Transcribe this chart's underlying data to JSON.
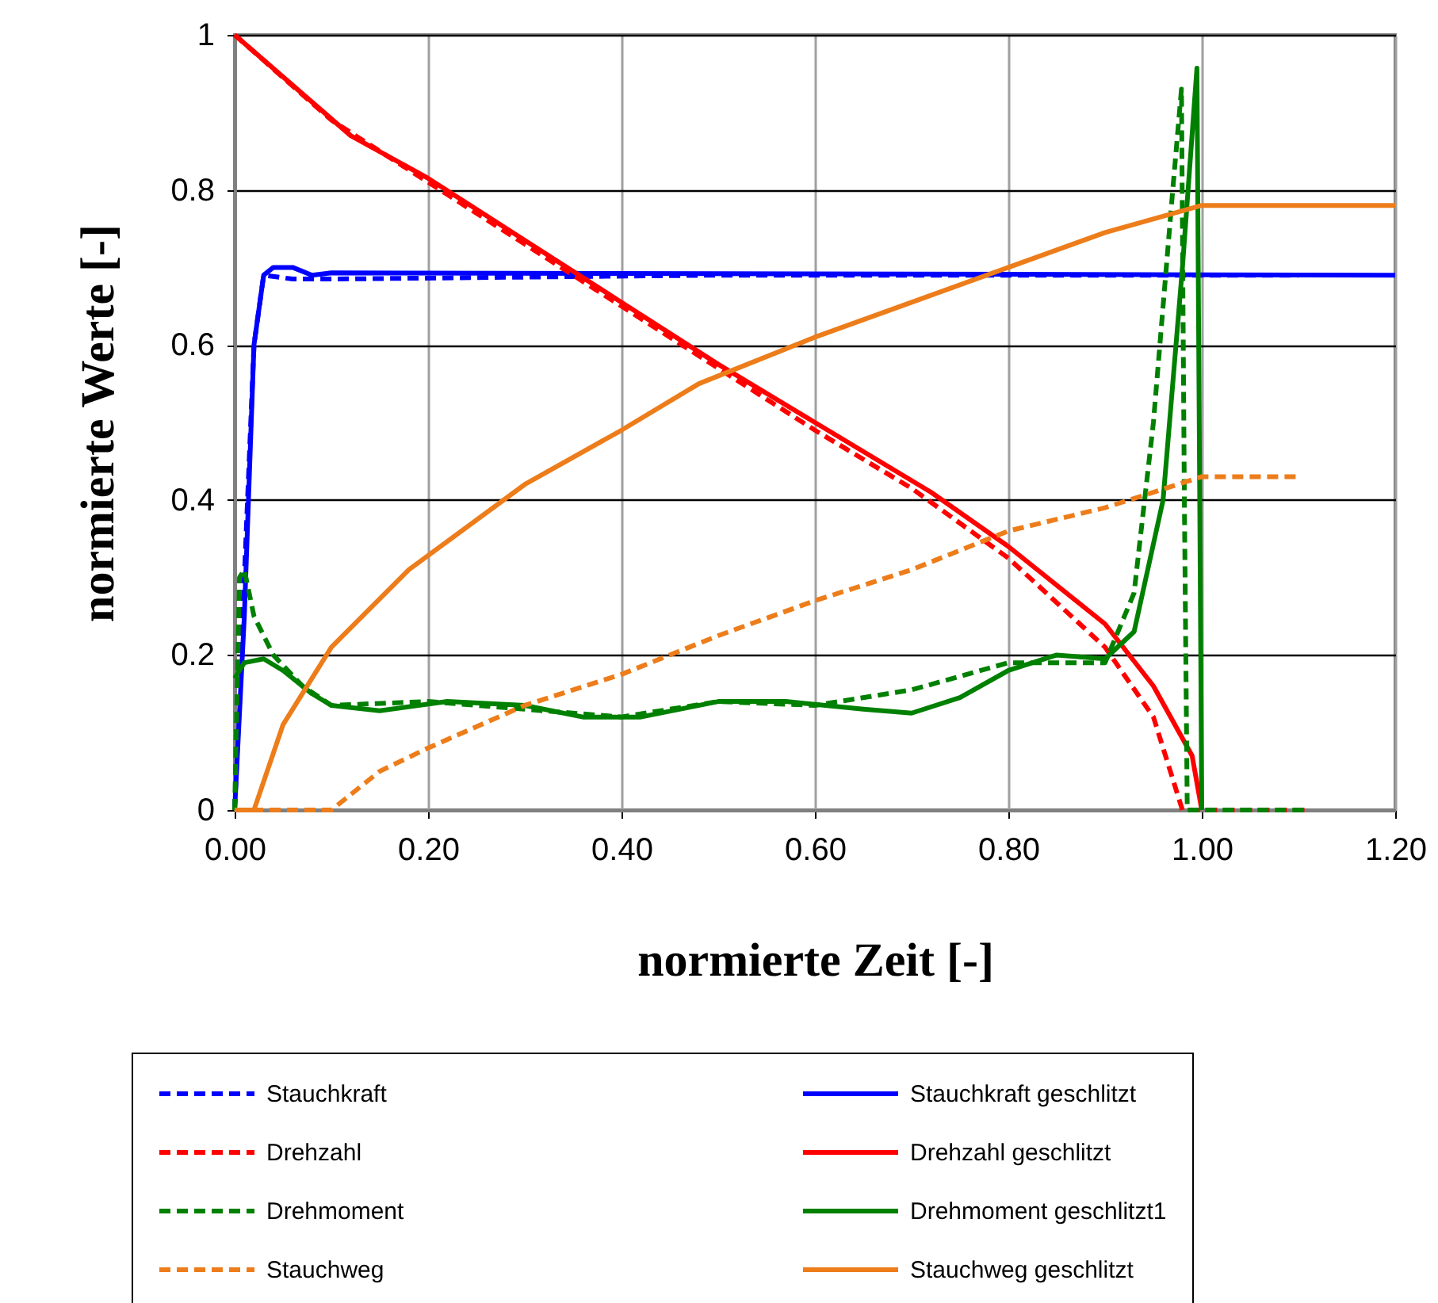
{
  "chart_data": {
    "type": "line",
    "xlabel": "normierte Zeit [-]",
    "ylabel": "normierte Werte [-]",
    "xlim": [
      0,
      1.2
    ],
    "xticks": [
      {
        "value": 0,
        "label": "0.00"
      },
      {
        "value": 0.2,
        "label": "0.20"
      },
      {
        "value": 0.4,
        "label": "0.40"
      },
      {
        "value": 0.6,
        "label": "0.60"
      },
      {
        "value": 0.8,
        "label": "0.80"
      },
      {
        "value": 1,
        "label": "1.00"
      },
      {
        "value": 1.2,
        "label": "1.20"
      }
    ],
    "ylim": [
      0,
      1
    ],
    "yticks": [
      0,
      0.2,
      0.4,
      0.6,
      0.8,
      1
    ],
    "grid": true,
    "legend": "bottom",
    "series": [
      {
        "name": "Stauchkraft",
        "color": "#0000ff",
        "line_style": "dashed",
        "x": [
          0,
          0.01,
          0.02,
          0.03,
          0.06,
          0.1,
          0.5,
          1.1
        ],
        "values": [
          0,
          0.3,
          0.6,
          0.69,
          0.685,
          0.685,
          0.69,
          0.69
        ]
      },
      {
        "name": "Stauchkraft geschlitzt",
        "color": "#0000ff",
        "line_style": "solid",
        "x": [
          0,
          0.01,
          0.02,
          0.03,
          0.04,
          0.06,
          0.08,
          0.1,
          0.5,
          1.2
        ],
        "values": [
          0,
          0.25,
          0.6,
          0.69,
          0.7,
          0.7,
          0.69,
          0.693,
          0.692,
          0.69
        ]
      },
      {
        "name": "Drehzahl",
        "color": "#ff0000",
        "line_style": "dashed",
        "x": [
          0,
          0.1,
          0.2,
          0.3,
          0.4,
          0.5,
          0.6,
          0.7,
          0.8,
          0.9,
          0.95,
          0.97,
          0.98,
          1.11
        ],
        "values": [
          1,
          0.89,
          0.81,
          0.73,
          0.65,
          0.57,
          0.49,
          0.415,
          0.325,
          0.21,
          0.12,
          0.04,
          0,
          0
        ]
      },
      {
        "name": "Drehzahl geschlitzt",
        "color": "#ff0000",
        "line_style": "solid",
        "x": [
          0,
          0.12,
          0.2,
          0.3,
          0.4,
          0.5,
          0.6,
          0.72,
          0.8,
          0.9,
          0.95,
          0.99,
          1.0
        ],
        "values": [
          1,
          0.87,
          0.815,
          0.735,
          0.655,
          0.575,
          0.5,
          0.41,
          0.34,
          0.24,
          0.16,
          0.07,
          0
        ]
      },
      {
        "name": "Drehmoment",
        "color": "#008000",
        "line_style": "dashed",
        "x": [
          0,
          0.005,
          0.01,
          0.02,
          0.04,
          0.07,
          0.1,
          0.2,
          0.3,
          0.4,
          0.5,
          0.6,
          0.7,
          0.8,
          0.9,
          0.93,
          0.95,
          0.97,
          0.979,
          0.982,
          0.985,
          1.11
        ],
        "values": [
          0,
          0.3,
          0.31,
          0.25,
          0.2,
          0.16,
          0.135,
          0.14,
          0.13,
          0.12,
          0.14,
          0.135,
          0.155,
          0.19,
          0.19,
          0.28,
          0.5,
          0.8,
          0.93,
          0.4,
          0,
          0
        ]
      },
      {
        "name": "Drehmoment geschlitzt1",
        "color": "#008000",
        "line_style": "solid",
        "x": [
          0,
          0.01,
          0.03,
          0.05,
          0.08,
          0.1,
          0.15,
          0.22,
          0.3,
          0.36,
          0.42,
          0.5,
          0.57,
          0.65,
          0.7,
          0.75,
          0.8,
          0.85,
          0.9,
          0.93,
          0.96,
          0.98,
          0.995,
          1.0
        ],
        "values": [
          0.17,
          0.19,
          0.195,
          0.18,
          0.15,
          0.135,
          0.128,
          0.14,
          0.135,
          0.12,
          0.12,
          0.14,
          0.14,
          0.13,
          0.125,
          0.145,
          0.18,
          0.2,
          0.195,
          0.23,
          0.4,
          0.7,
          0.957,
          0
        ]
      },
      {
        "name": "Stauchweg",
        "color": "#ed7d1a",
        "line_style": "dashed",
        "x": [
          0,
          0.1,
          0.15,
          0.2,
          0.3,
          0.4,
          0.5,
          0.6,
          0.7,
          0.8,
          0.9,
          0.95,
          1.0,
          1.1
        ],
        "values": [
          0,
          0,
          0.05,
          0.08,
          0.135,
          0.175,
          0.225,
          0.27,
          0.31,
          0.36,
          0.39,
          0.41,
          0.43,
          0.43
        ]
      },
      {
        "name": "Stauchweg geschlitzt",
        "color": "#ed7d1a",
        "line_style": "solid",
        "x": [
          0,
          0.02,
          0.05,
          0.1,
          0.18,
          0.3,
          0.4,
          0.48,
          0.6,
          0.7,
          0.8,
          0.9,
          1.0,
          1.2
        ],
        "values": [
          0,
          0,
          0.11,
          0.21,
          0.31,
          0.42,
          0.49,
          0.55,
          0.61,
          0.655,
          0.7,
          0.745,
          0.78,
          0.78
        ]
      }
    ]
  }
}
